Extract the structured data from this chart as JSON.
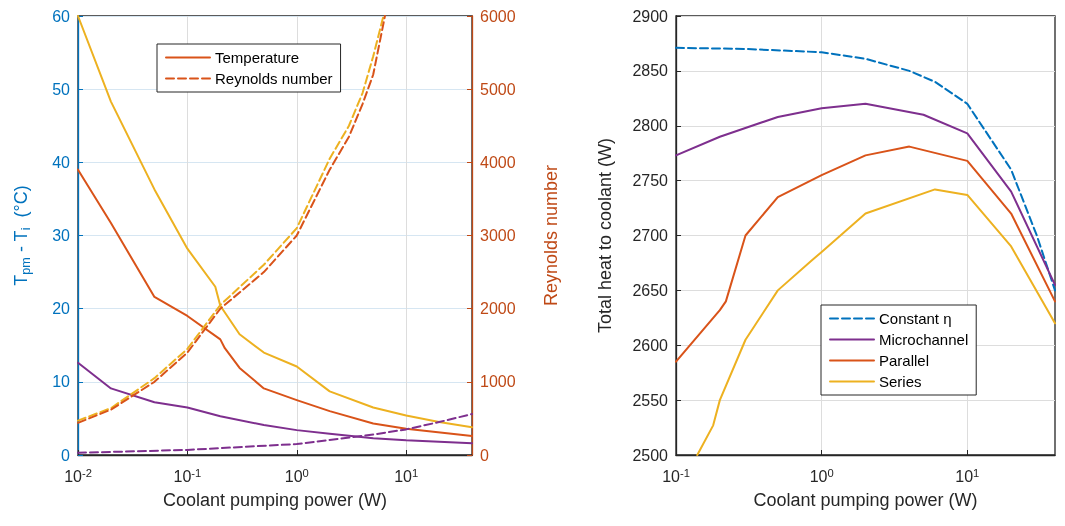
{
  "chart_data": [
    {
      "type": "line",
      "xlabel": "Coolant pumping power (W)",
      "ylabel": "T$_{pm}$ - T$_{i}$  (°C)",
      "y2label": "Reynolds number",
      "log": "x",
      "grid": true,
      "legend": "top",
      "line_style": "solid",
      "marker": "none",
      "xlim": [
        0.01,
        40
      ],
      "xticks": [
        {
          "value": 0.01,
          "label": "10$^{-2}$"
        },
        {
          "value": 0.1,
          "label": "10$^{-1}$"
        },
        {
          "value": 1,
          "label": "10$^{0}$"
        },
        {
          "value": 10,
          "label": "10$^{1}$"
        }
      ],
      "ylim": [
        0,
        60
      ],
      "yticks": [
        0,
        10,
        20,
        30,
        40,
        50,
        60
      ],
      "y2lim": [
        0,
        6000
      ],
      "y2ticks": [
        0,
        1000,
        2000,
        3000,
        4000,
        5000,
        6000
      ],
      "series": [
        {
          "color": "#edb120",
          "x": [
            0.01,
            0.02,
            0.05,
            0.1,
            0.18,
            0.2,
            0.3,
            0.5,
            1,
            2,
            5,
            10,
            20,
            40
          ],
          "values": [
            60,
            48.3,
            36.3,
            28.2,
            23,
            20.4,
            16.5,
            14,
            12.1,
            8.7,
            6.5,
            5.4,
            4.5,
            3.8
          ]
        },
        {
          "name": "Temperature",
          "color": "#d95319",
          "x": [
            0.01,
            0.02,
            0.05,
            0.1,
            0.2,
            0.22,
            0.3,
            0.5,
            1,
            2,
            5,
            10,
            40
          ],
          "values": [
            39,
            31.7,
            21.6,
            19,
            15.8,
            14.6,
            11.9,
            9.1,
            7.5,
            6,
            4.3,
            3.6,
            2.6
          ]
        },
        {
          "color": "#7e2f8e",
          "x": [
            0.01,
            0.02,
            0.05,
            0.1,
            0.2,
            0.5,
            1,
            2,
            5,
            10,
            40
          ],
          "values": [
            12.6,
            9.1,
            7.2,
            6.5,
            5.3,
            4.1,
            3.4,
            2.9,
            2.3,
            2,
            1.6
          ]
        },
        {
          "color": "#edb120",
          "axis": "y2",
          "line_style": "dashed",
          "x": [
            0.01,
            0.02,
            0.05,
            0.1,
            0.2,
            0.5,
            1,
            2,
            3,
            4,
            5,
            6.2
          ],
          "values": [
            470,
            640,
            1050,
            1450,
            2050,
            2600,
            3100,
            4050,
            4500,
            4950,
            5450,
            6000
          ]
        },
        {
          "name": "Reynolds number",
          "color": "#d95319",
          "axis": "y2",
          "line_style": "dashed",
          "x": [
            0.01,
            0.02,
            0.05,
            0.1,
            0.2,
            0.5,
            1,
            2,
            3,
            4,
            5,
            6.4
          ],
          "values": [
            440,
            620,
            1000,
            1400,
            2000,
            2500,
            3000,
            3900,
            4350,
            4800,
            5200,
            6000
          ]
        },
        {
          "color": "#7e2f8e",
          "axis": "y2",
          "line_style": "dashed",
          "x": [
            0.01,
            0.1,
            1,
            5,
            10,
            20,
            40
          ],
          "values": [
            30,
            70,
            150,
            280,
            350,
            450,
            560
          ]
        }
      ]
    },
    {
      "type": "line",
      "xlabel": "Coolant pumping power (W)",
      "ylabel": "Total heat to coolant (W)",
      "log": "x",
      "grid": true,
      "legend": "bottom",
      "line_style": "solid",
      "marker": "none",
      "xlim": [
        0.1,
        40
      ],
      "xticks": [
        {
          "value": 0.1,
          "label": "10$^{-1}$"
        },
        {
          "value": 1,
          "label": "10$^{0}$"
        },
        {
          "value": 10,
          "label": "10$^{1}$"
        }
      ],
      "ylim": [
        2500,
        2900
      ],
      "yticks": [
        2500,
        2550,
        2600,
        2650,
        2700,
        2750,
        2800,
        2850,
        2900
      ],
      "series": [
        {
          "name": "Constant η",
          "color": "#0072bd",
          "line_style": "dashed",
          "x": [
            0.1,
            0.3,
            1,
            2,
            4,
            6,
            10,
            20,
            30,
            40
          ],
          "values": [
            2871,
            2870,
            2867,
            2861,
            2850,
            2840,
            2820,
            2760,
            2700,
            2650
          ]
        },
        {
          "name": "Microchannel",
          "color": "#7e2f8e",
          "x": [
            0.1,
            0.2,
            0.5,
            1,
            2,
            5,
            10,
            20,
            40
          ],
          "values": [
            2773,
            2790,
            2808,
            2816,
            2820,
            2810,
            2793,
            2740,
            2655
          ]
        },
        {
          "name": "Parallel",
          "color": "#d95319",
          "x": [
            0.1,
            0.2,
            0.22,
            0.3,
            0.5,
            1,
            2,
            4,
            10,
            20,
            40
          ],
          "values": [
            2585,
            2632,
            2640,
            2700,
            2735,
            2755,
            2773,
            2781,
            2768,
            2720,
            2640
          ]
        },
        {
          "name": "Series",
          "color": "#edb120",
          "x": [
            0.14,
            0.18,
            0.2,
            0.3,
            0.5,
            0.85,
            1,
            2,
            6,
            10,
            20,
            40
          ],
          "values": [
            2500,
            2527,
            2550,
            2605,
            2650,
            2677,
            2685,
            2720,
            2742,
            2737,
            2690,
            2620
          ]
        }
      ]
    }
  ]
}
